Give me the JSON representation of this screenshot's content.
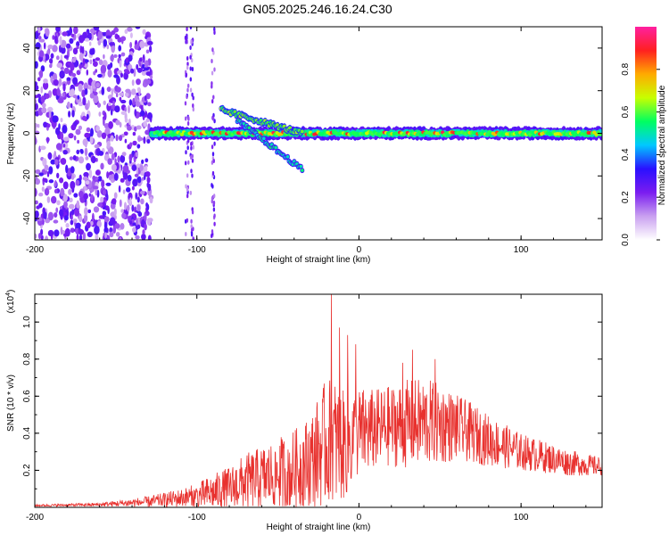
{
  "title": "GN05.2025.246.16.24.C30",
  "chart_data": [
    {
      "type": "heatmap",
      "name": "spectrogram",
      "xlabel": "Height of straight line (km)",
      "ylabel": "Frequency (Hz)",
      "xlim": [
        -200,
        150
      ],
      "ylim": [
        -50,
        50
      ],
      "xticks": [
        -200,
        -100,
        0,
        100
      ],
      "yticks": [
        -40,
        -20,
        0,
        20,
        40
      ],
      "xtick_labels": [
        "-200",
        "-100",
        "0",
        "100"
      ],
      "ytick_labels": [
        "-40",
        "-20",
        "0",
        "20",
        "40"
      ],
      "colorbar": {
        "label": "Normalized spectral amplitude",
        "range": [
          0,
          1
        ],
        "ticks": [
          0.0,
          0.2,
          0.4,
          0.6,
          0.8
        ],
        "tick_labels": [
          "0.0",
          "0.2",
          "0.4",
          "0.6",
          "0.8"
        ],
        "colors": [
          "#ffffff",
          "#c9a0f0",
          "#7a1cf0",
          "#2a10ff",
          "#00c8ff",
          "#00ff60",
          "#c8ff00",
          "#ffaa00",
          "#ff2020",
          "#ff20a0"
        ]
      },
      "features": {
        "noise_region_x": [
          -200,
          -128
        ],
        "main_band_x": [
          -128,
          150
        ],
        "main_band_freq": 0,
        "upper_branch": {
          "x": [
            -85,
            -35
          ],
          "freq": [
            11,
            0
          ]
        },
        "lower_branch": {
          "x": [
            -75,
            -35
          ],
          "freq": [
            6,
            -17
          ]
        }
      }
    },
    {
      "type": "line",
      "name": "snr",
      "xlabel": "Height of straight line (km)",
      "ylabel": "SNR (10 * v/v)",
      "yscale_label": "(x10",
      "yscale_exp": "4",
      "xlim": [
        -200,
        150
      ],
      "ylim": [
        0,
        1.15
      ],
      "xticks": [
        -200,
        -100,
        0,
        100
      ],
      "yticks": [
        0.2,
        0.4,
        0.6,
        0.8,
        1.0
      ],
      "xtick_labels": [
        "-200",
        "-100",
        "0",
        "100"
      ],
      "ytick_labels": [
        "0.2",
        "0.4",
        "0.6",
        "0.8",
        "1.0"
      ],
      "color": "#e8312e",
      "envelope": {
        "x": [
          -200,
          -160,
          -130,
          -110,
          -100,
          -90,
          -80,
          -70,
          -60,
          -50,
          -40,
          -30,
          -25,
          -20,
          -15,
          -10,
          -5,
          0,
          10,
          20,
          30,
          40,
          50,
          60,
          70,
          80,
          90,
          100,
          110,
          120,
          130,
          140,
          150
        ],
        "base": [
          0.01,
          0.015,
          0.03,
          0.05,
          0.06,
          0.08,
          0.1,
          0.14,
          0.16,
          0.18,
          0.2,
          0.25,
          0.3,
          0.35,
          0.35,
          0.33,
          0.36,
          0.4,
          0.42,
          0.44,
          0.45,
          0.46,
          0.45,
          0.43,
          0.4,
          0.36,
          0.33,
          0.3,
          0.28,
          0.26,
          0.24,
          0.23,
          0.22
        ],
        "amp": [
          0.005,
          0.01,
          0.03,
          0.05,
          0.07,
          0.1,
          0.12,
          0.15,
          0.17,
          0.2,
          0.22,
          0.25,
          0.3,
          0.35,
          0.35,
          0.3,
          0.28,
          0.25,
          0.22,
          0.22,
          0.24,
          0.24,
          0.22,
          0.18,
          0.16,
          0.14,
          0.12,
          0.1,
          0.09,
          0.08,
          0.07,
          0.06,
          0.05
        ]
      },
      "peaks": [
        {
          "x": -17,
          "y": 1.15
        },
        {
          "x": -12,
          "y": 0.97
        },
        {
          "x": -7,
          "y": 0.93
        },
        {
          "x": -2,
          "y": 0.88
        },
        {
          "x": 27,
          "y": 0.78
        },
        {
          "x": 33,
          "y": 0.85
        },
        {
          "x": 47,
          "y": 0.8
        }
      ]
    }
  ]
}
